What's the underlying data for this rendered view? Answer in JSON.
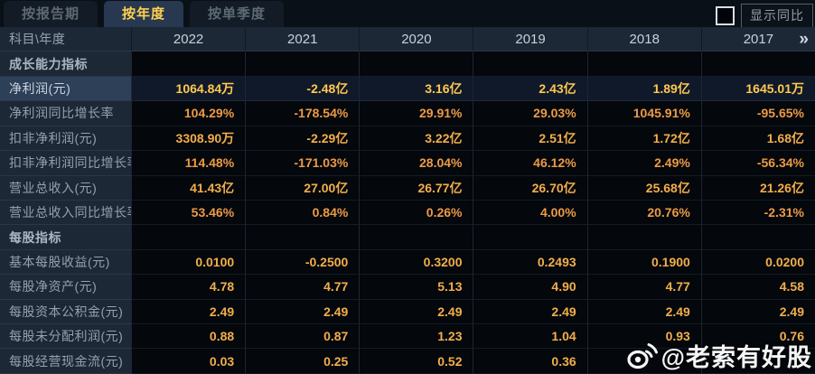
{
  "tabs": [
    {
      "label": "按报告期",
      "active": false
    },
    {
      "label": "按年度",
      "active": true
    },
    {
      "label": "按单季度",
      "active": false
    }
  ],
  "controls": {
    "show_yoy_label": "显示同比",
    "checkbox_checked": false
  },
  "table": {
    "corner_label": "科目\\年度",
    "years": [
      "2022",
      "2021",
      "2020",
      "2019",
      "2018",
      "2017"
    ],
    "more_icon": "»",
    "rows": [
      {
        "type": "section",
        "label": "成长能力指标",
        "values": [
          "",
          "",
          "",
          "",
          "",
          ""
        ]
      },
      {
        "type": "data",
        "label": "净利润(元)",
        "highlight": true,
        "values": [
          "1064.84万",
          "-2.48亿",
          "3.16亿",
          "2.43亿",
          "1.89亿",
          "1645.01万"
        ]
      },
      {
        "type": "data",
        "label": "净利润同比增长率",
        "tone": "percent",
        "values": [
          "104.29%",
          "-178.54%",
          "29.91%",
          "29.03%",
          "1045.91%",
          "-95.65%"
        ]
      },
      {
        "type": "data",
        "label": "扣非净利润(元)",
        "values": [
          "3308.90万",
          "-2.29亿",
          "3.22亿",
          "2.51亿",
          "1.72亿",
          "1.68亿"
        ]
      },
      {
        "type": "data",
        "label": "扣非净利润同比增长率",
        "tone": "percent",
        "values": [
          "114.48%",
          "-171.03%",
          "28.04%",
          "46.12%",
          "2.49%",
          "-56.34%"
        ]
      },
      {
        "type": "data",
        "label": "营业总收入(元)",
        "values": [
          "41.43亿",
          "27.00亿",
          "26.77亿",
          "26.70亿",
          "25.68亿",
          "21.26亿"
        ]
      },
      {
        "type": "data",
        "label": "营业总收入同比增长率",
        "tone": "percent",
        "values": [
          "53.46%",
          "0.84%",
          "0.26%",
          "4.00%",
          "20.76%",
          "-2.31%"
        ]
      },
      {
        "type": "section",
        "label": "每股指标",
        "values": [
          "",
          "",
          "",
          "",
          "",
          ""
        ]
      },
      {
        "type": "data",
        "label": "基本每股收益(元)",
        "values": [
          "0.0100",
          "-0.2500",
          "0.3200",
          "0.2493",
          "0.1900",
          "0.0200"
        ]
      },
      {
        "type": "data",
        "label": "每股净资产(元)",
        "values": [
          "4.78",
          "4.77",
          "5.13",
          "4.90",
          "4.77",
          "4.58"
        ]
      },
      {
        "type": "data",
        "label": "每股资本公积金(元)",
        "values": [
          "2.49",
          "2.49",
          "2.49",
          "2.49",
          "2.49",
          "2.49"
        ]
      },
      {
        "type": "data",
        "label": "每股未分配利润(元)",
        "values": [
          "0.88",
          "0.87",
          "1.23",
          "1.04",
          "0.93",
          "0.76"
        ]
      },
      {
        "type": "data",
        "label": "每股经营现金流(元)",
        "values": [
          "0.03",
          "0.25",
          "0.52",
          "0.36",
          "",
          ""
        ]
      }
    ]
  },
  "watermark": {
    "text": "@老索有好股",
    "icon": "weibo-icon"
  },
  "colors": {
    "page_bg": "#070b11",
    "header_bg": "#1c2836",
    "accent_gold": "#ffc94f",
    "value_gold": "#f2ae4c",
    "percent_orange": "#ec9a45",
    "tab_active_text": "#ffd04e",
    "highlight_row_bg": "#2e3f58"
  }
}
